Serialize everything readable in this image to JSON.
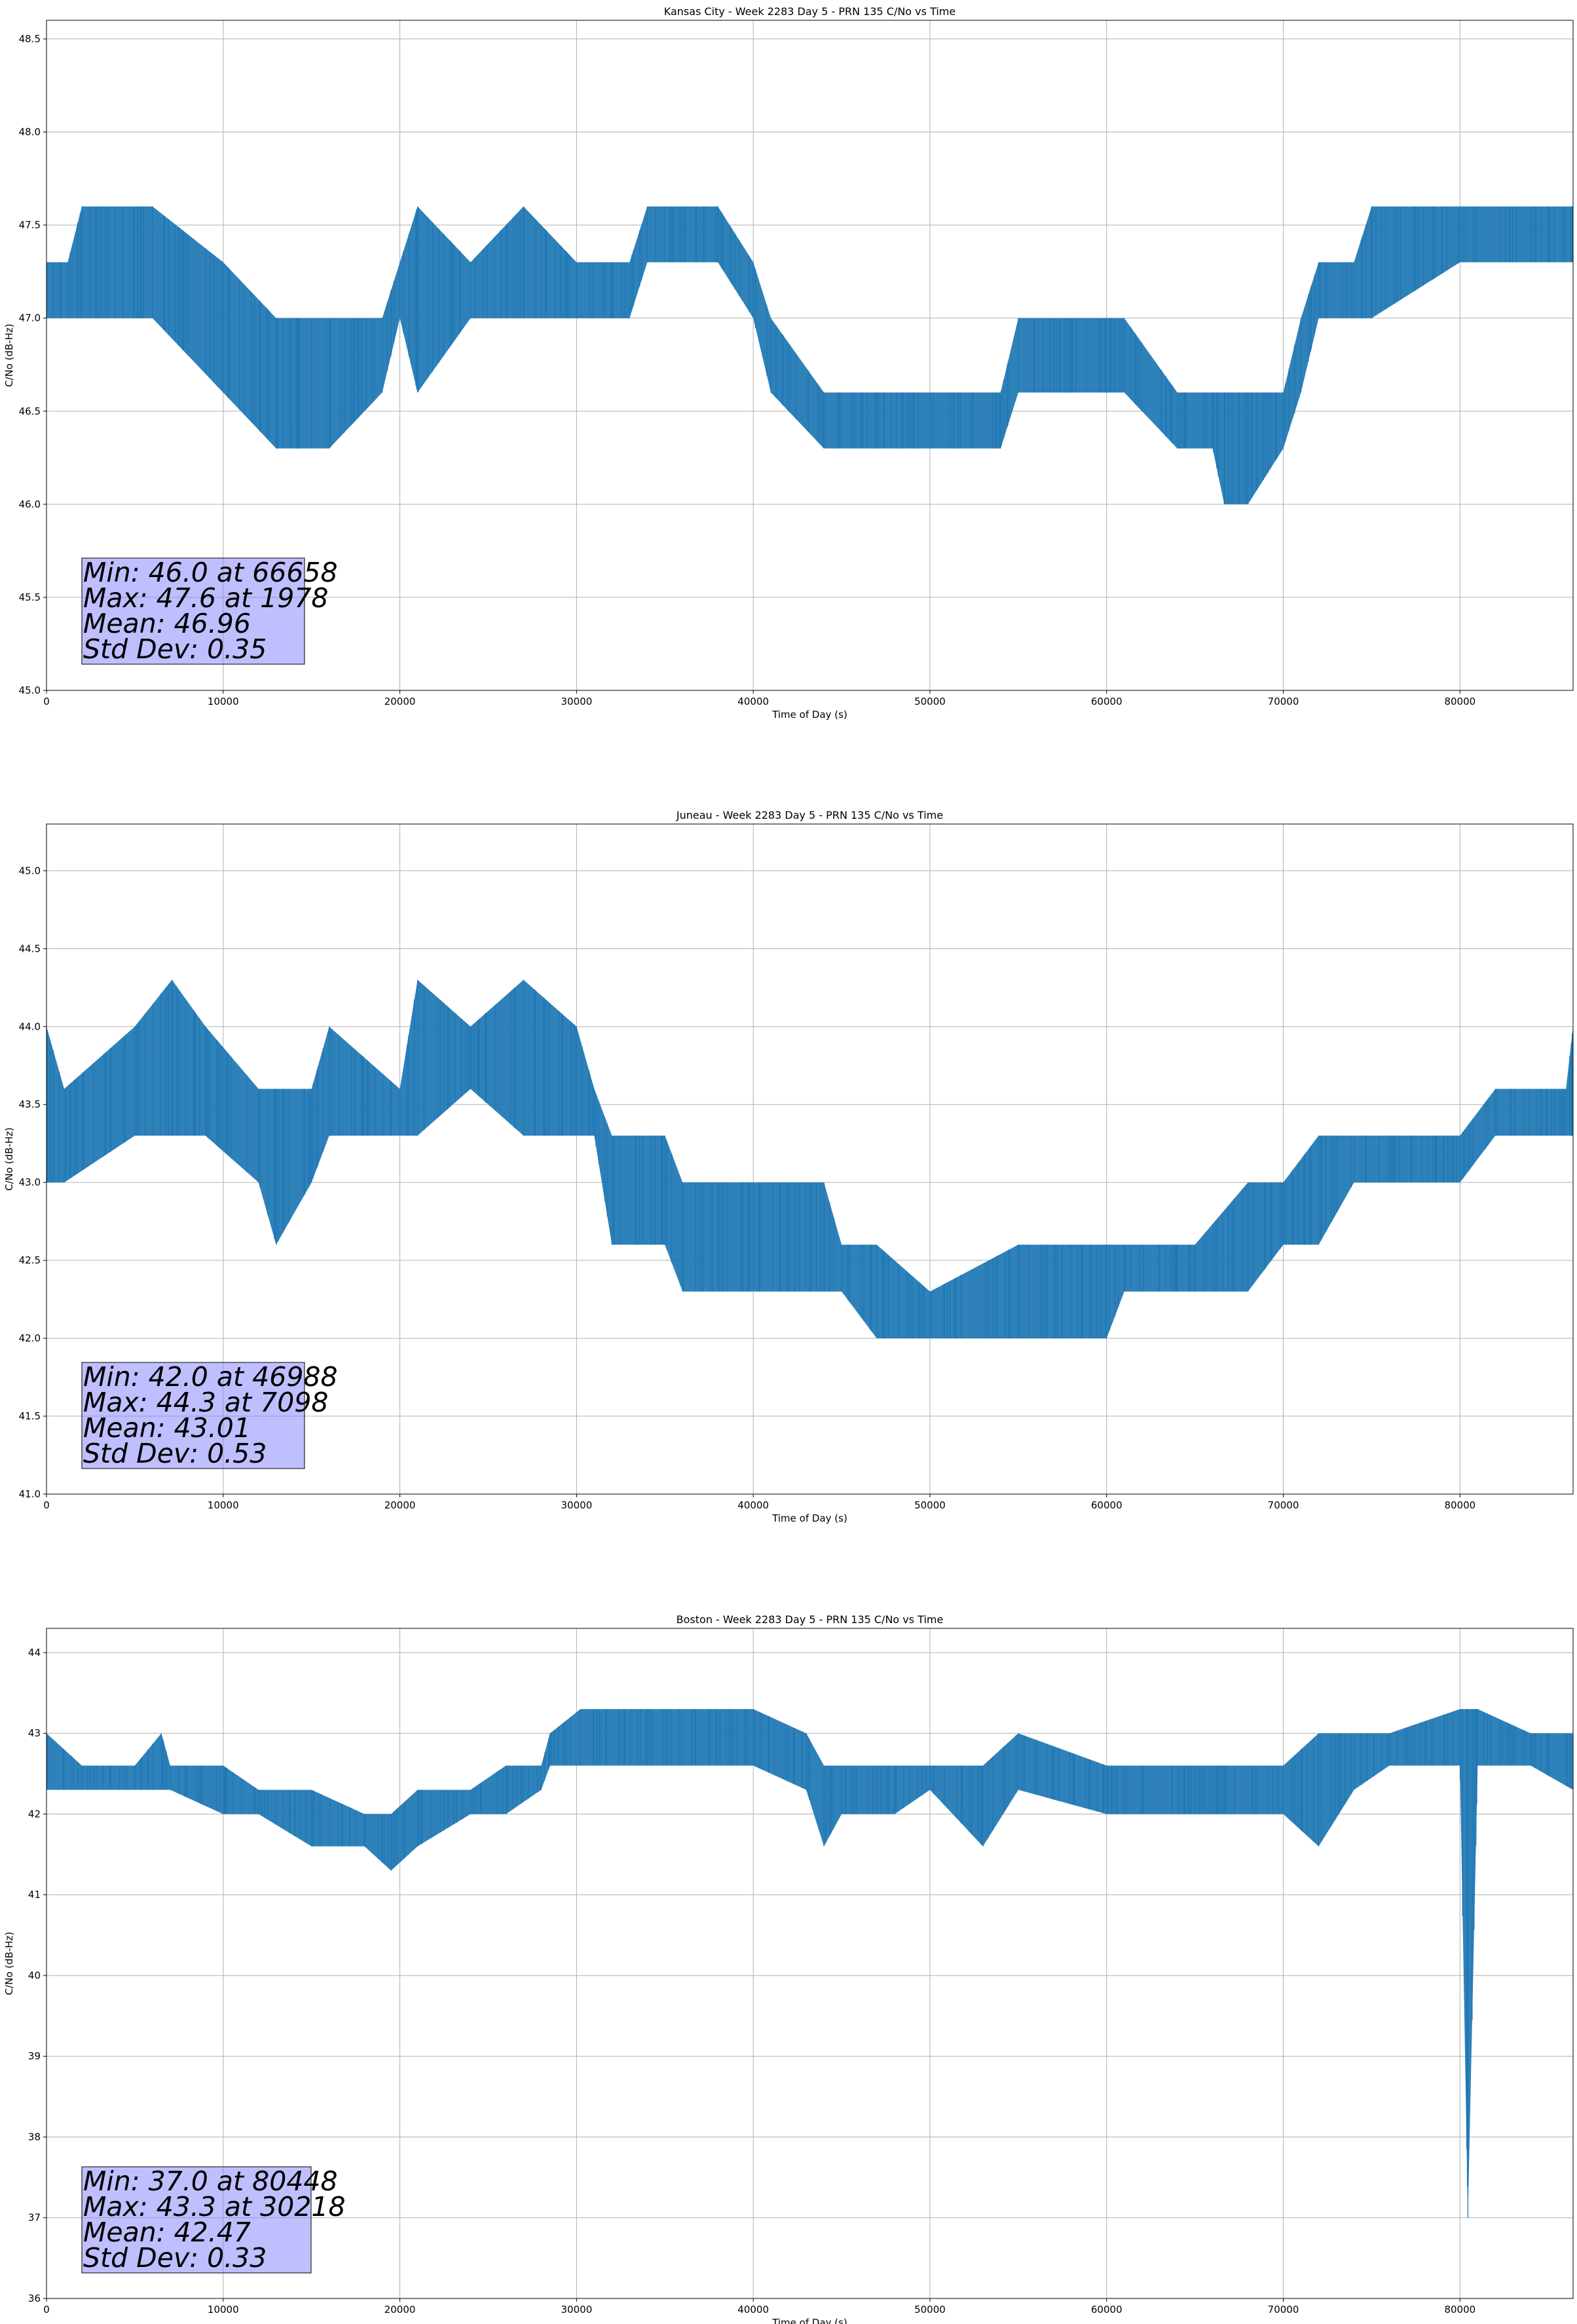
{
  "colors": {
    "series": "#1f77b4",
    "grid": "#b0b0b0",
    "stats_box": "#8080ff"
  },
  "chart_data": [
    {
      "type": "line",
      "title": "Kansas City - Week 2283 Day 5 - PRN 135 C/No vs Time",
      "xlabel": "Time of Day (s)",
      "ylabel": "C/No (dB-Hz)",
      "xlim": [
        0,
        86400
      ],
      "ylim": [
        45.0,
        48.6
      ],
      "xticks": [
        0,
        10000,
        20000,
        30000,
        40000,
        50000,
        60000,
        70000,
        80000
      ],
      "yticks": [
        45.0,
        45.5,
        46.0,
        46.5,
        47.0,
        47.5,
        48.0,
        48.5
      ],
      "ytick_decimals": 1,
      "grid": true,
      "series_envelope": [
        [
          0,
          47.0,
          47.3
        ],
        [
          1200,
          47.0,
          47.3
        ],
        [
          2000,
          47.0,
          47.6
        ],
        [
          6000,
          47.0,
          47.6
        ],
        [
          10000,
          46.6,
          47.3
        ],
        [
          13000,
          46.3,
          47.0
        ],
        [
          16000,
          46.3,
          47.0
        ],
        [
          19000,
          46.6,
          47.0
        ],
        [
          20000,
          47.0,
          47.3
        ],
        [
          21000,
          46.6,
          47.6
        ],
        [
          24000,
          47.0,
          47.3
        ],
        [
          27000,
          47.0,
          47.6
        ],
        [
          30000,
          47.0,
          47.3
        ],
        [
          33000,
          47.0,
          47.3
        ],
        [
          34000,
          47.3,
          47.6
        ],
        [
          38000,
          47.3,
          47.6
        ],
        [
          40000,
          47.0,
          47.3
        ],
        [
          41000,
          46.6,
          47.0
        ],
        [
          44000,
          46.3,
          46.6
        ],
        [
          47000,
          46.3,
          46.6
        ],
        [
          50000,
          46.3,
          46.6
        ],
        [
          54000,
          46.3,
          46.6
        ],
        [
          55000,
          46.6,
          47.0
        ],
        [
          58000,
          46.6,
          47.0
        ],
        [
          61000,
          46.6,
          47.0
        ],
        [
          64000,
          46.3,
          46.6
        ],
        [
          66000,
          46.3,
          46.6
        ],
        [
          66658,
          46.0,
          46.6
        ],
        [
          68000,
          46.0,
          46.6
        ],
        [
          70000,
          46.3,
          46.6
        ],
        [
          71000,
          46.6,
          47.0
        ],
        [
          72000,
          47.0,
          47.3
        ],
        [
          74000,
          47.0,
          47.3
        ],
        [
          75000,
          47.0,
          47.6
        ],
        [
          80000,
          47.3,
          47.6
        ],
        [
          86400,
          47.3,
          47.6
        ]
      ],
      "stats": [
        "Min: 46.0 at 66658",
        "Max: 47.6 at 1978",
        "Mean: 46.96",
        "Std Dev: 0.35"
      ]
    },
    {
      "type": "line",
      "title": "Juneau - Week 2283 Day 5 - PRN 135 C/No vs Time",
      "xlabel": "Time of Day (s)",
      "ylabel": "C/No (dB-Hz)",
      "xlim": [
        0,
        86400
      ],
      "ylim": [
        41.0,
        45.3
      ],
      "xticks": [
        0,
        10000,
        20000,
        30000,
        40000,
        50000,
        60000,
        70000,
        80000
      ],
      "yticks": [
        41.0,
        41.5,
        42.0,
        42.5,
        43.0,
        43.5,
        44.0,
        44.5,
        45.0
      ],
      "ytick_decimals": 1,
      "grid": true,
      "series_envelope": [
        [
          0,
          43.0,
          44.0
        ],
        [
          1000,
          43.0,
          43.6
        ],
        [
          5000,
          43.3,
          44.0
        ],
        [
          7098,
          43.3,
          44.3
        ],
        [
          9000,
          43.3,
          44.0
        ],
        [
          12000,
          43.0,
          43.6
        ],
        [
          13000,
          42.6,
          43.6
        ],
        [
          15000,
          43.0,
          43.6
        ],
        [
          16000,
          43.3,
          44.0
        ],
        [
          20000,
          43.3,
          43.6
        ],
        [
          21000,
          43.3,
          44.3
        ],
        [
          24000,
          43.6,
          44.0
        ],
        [
          27000,
          43.3,
          44.3
        ],
        [
          30000,
          43.3,
          44.0
        ],
        [
          31000,
          43.3,
          43.6
        ],
        [
          32000,
          42.6,
          43.3
        ],
        [
          35000,
          42.6,
          43.3
        ],
        [
          36000,
          42.3,
          43.0
        ],
        [
          38000,
          42.3,
          43.0
        ],
        [
          42000,
          42.3,
          43.0
        ],
        [
          44000,
          42.3,
          43.0
        ],
        [
          45000,
          42.3,
          42.6
        ],
        [
          46988,
          42.0,
          42.6
        ],
        [
          50000,
          42.0,
          42.3
        ],
        [
          55000,
          42.0,
          42.6
        ],
        [
          60000,
          42.0,
          42.6
        ],
        [
          61000,
          42.3,
          42.6
        ],
        [
          64000,
          42.3,
          42.6
        ],
        [
          65000,
          42.3,
          42.6
        ],
        [
          68000,
          42.3,
          43.0
        ],
        [
          70000,
          42.6,
          43.0
        ],
        [
          72000,
          42.6,
          43.3
        ],
        [
          74000,
          43.0,
          43.3
        ],
        [
          80000,
          43.0,
          43.3
        ],
        [
          82000,
          43.3,
          43.6
        ],
        [
          86000,
          43.3,
          43.6
        ],
        [
          86400,
          43.3,
          44.0
        ]
      ],
      "stats": [
        "Min: 42.0 at 46988",
        "Max: 44.3 at 7098",
        "Mean: 43.01",
        "Std Dev: 0.53"
      ]
    },
    {
      "type": "line",
      "title": "Boston - Week 2283 Day 5 - PRN 135 C/No vs Time",
      "xlabel": "Time of Day (s)",
      "ylabel": "C/No (dB-Hz)",
      "xlim": [
        0,
        86400
      ],
      "ylim": [
        36.0,
        44.3
      ],
      "xticks": [
        0,
        10000,
        20000,
        30000,
        40000,
        50000,
        60000,
        70000,
        80000
      ],
      "yticks": [
        36,
        37,
        38,
        39,
        40,
        41,
        42,
        43,
        44
      ],
      "ytick_decimals": 0,
      "grid": true,
      "series_envelope": [
        [
          0,
          42.3,
          43.0
        ],
        [
          2000,
          42.3,
          42.6
        ],
        [
          5000,
          42.3,
          42.6
        ],
        [
          6500,
          42.3,
          43.0
        ],
        [
          7000,
          42.3,
          42.6
        ],
        [
          10000,
          42.0,
          42.6
        ],
        [
          12000,
          42.0,
          42.3
        ],
        [
          15000,
          41.6,
          42.3
        ],
        [
          18000,
          41.6,
          42.0
        ],
        [
          19500,
          41.3,
          42.0
        ],
        [
          21000,
          41.6,
          42.3
        ],
        [
          24000,
          42.0,
          42.3
        ],
        [
          26000,
          42.0,
          42.6
        ],
        [
          28000,
          42.3,
          42.6
        ],
        [
          28500,
          42.6,
          43.0
        ],
        [
          30218,
          42.6,
          43.3
        ],
        [
          34000,
          42.6,
          43.3
        ],
        [
          40000,
          42.6,
          43.3
        ],
        [
          43000,
          42.3,
          43.0
        ],
        [
          44000,
          41.6,
          42.6
        ],
        [
          45000,
          42.0,
          42.6
        ],
        [
          48000,
          42.0,
          42.6
        ],
        [
          50000,
          42.3,
          42.6
        ],
        [
          53000,
          41.6,
          42.6
        ],
        [
          55000,
          42.3,
          43.0
        ],
        [
          60000,
          42.0,
          42.6
        ],
        [
          70000,
          42.0,
          42.6
        ],
        [
          72000,
          41.6,
          43.0
        ],
        [
          74000,
          42.3,
          43.0
        ],
        [
          76000,
          42.6,
          43.0
        ],
        [
          80000,
          42.6,
          43.3
        ],
        [
          80448,
          37.0,
          43.3
        ],
        [
          81000,
          42.6,
          43.3
        ],
        [
          84000,
          42.6,
          43.0
        ],
        [
          86400,
          42.3,
          43.0
        ]
      ],
      "stats": [
        "Min: 37.0 at 80448",
        "Max: 43.3 at 30218",
        "Mean: 42.47",
        "Std Dev: 0.33"
      ]
    }
  ]
}
